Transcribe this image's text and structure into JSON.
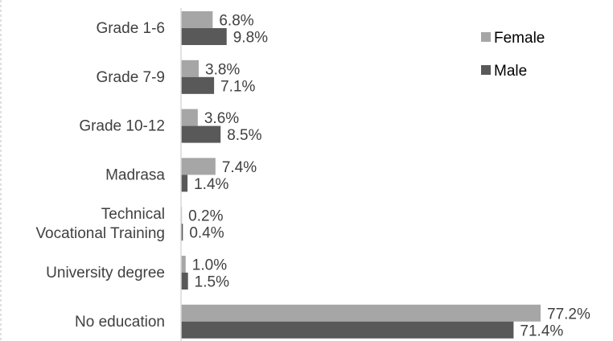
{
  "chart_data": {
    "type": "bar",
    "orientation": "horizontal",
    "categories": [
      [
        "Grade 1-6"
      ],
      [
        "Grade 7-9"
      ],
      [
        "Grade 10-12"
      ],
      [
        "Madrasa"
      ],
      [
        "Technical",
        "Vocational Training"
      ],
      [
        "University degree"
      ],
      [
        "No education"
      ]
    ],
    "series": [
      {
        "name": "Female",
        "color": "#a6a6a6",
        "values": [
          6.8,
          3.8,
          3.6,
          7.4,
          0.2,
          1.0,
          77.2
        ],
        "labels": [
          "6.8%",
          "3.8%",
          "3.6%",
          "7.4%",
          "0.2%",
          "1.0%",
          "77.2%"
        ]
      },
      {
        "name": "Male",
        "color": "#595959",
        "values": [
          9.8,
          7.1,
          8.5,
          1.4,
          0.4,
          1.5,
          71.4
        ],
        "labels": [
          "9.8%",
          "7.1%",
          "8.5%",
          "1.4%",
          "0.4%",
          "1.5%",
          "71.4%"
        ]
      }
    ],
    "xlim": [
      0,
      80
    ],
    "legend_position": "top-right",
    "grid": false,
    "axis_line_color": "#d9d9d9"
  }
}
